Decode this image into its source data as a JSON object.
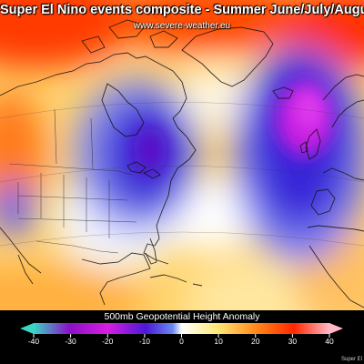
{
  "map": {
    "title": "Super El Nino events composite - Summer June/July/August Average",
    "subtitle": "www.severe-weather.eu",
    "region": "North America, North Atlantic and Europe"
  },
  "legend": {
    "title": "500mb Geopotential Height Anomaly",
    "ticks": [
      "-40",
      "-30",
      "-20",
      "-10",
      "0",
      "10",
      "20",
      "30",
      "40"
    ],
    "colors": [
      "#39d6c4",
      "#8a10c8",
      "#d61ee0",
      "#4a18d8",
      "#4a72ee",
      "#ffffff",
      "#ffea78",
      "#ff8a1a",
      "#ff2600",
      "#ffb8c6"
    ]
  },
  "footer": {
    "credit": "Super El"
  },
  "colors": {
    "strong_negative": "#9a1ce8",
    "negative": "#3a2ad8",
    "neutral": "#ffffff",
    "positive": "#ffc04a",
    "strong_positive": "#ff3a00"
  }
}
